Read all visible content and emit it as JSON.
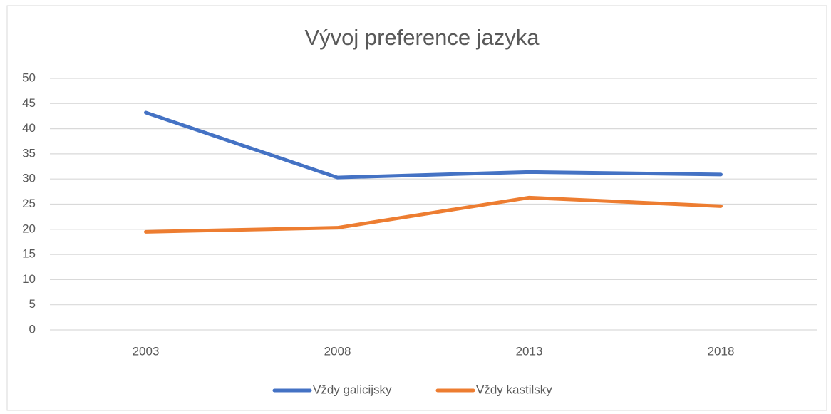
{
  "chart_data": {
    "type": "line",
    "title": "Vývoj preference jazyka",
    "categories": [
      "2003",
      "2008",
      "2013",
      "2018"
    ],
    "series": [
      {
        "name": "Vždy galicijsky",
        "color": "#4472c4",
        "values": [
          43.2,
          30.3,
          31.4,
          30.9
        ]
      },
      {
        "name": "Vždy kastilsky",
        "color": "#ed7d31",
        "values": [
          19.5,
          20.3,
          26.3,
          24.6
        ]
      }
    ],
    "ylim": [
      0,
      50
    ],
    "yticks": [
      0,
      5,
      10,
      15,
      20,
      25,
      30,
      35,
      40,
      45,
      50
    ],
    "grid": true,
    "legend": "bottom"
  }
}
